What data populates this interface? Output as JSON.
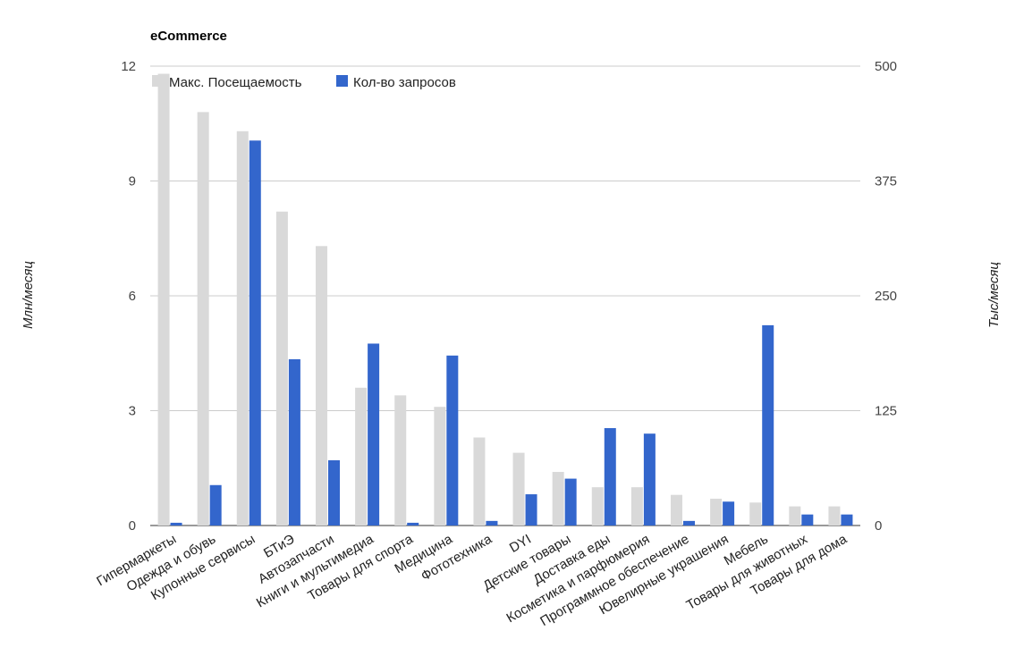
{
  "chart_data": {
    "type": "bar",
    "title": "eCommerce",
    "ylabel_left": "Млн/месяц",
    "ylabel_right": "Тыс/месяц",
    "ylim_left": [
      0,
      12
    ],
    "ylim_right": [
      0,
      500
    ],
    "yticks_left": [
      "0",
      "3",
      "6",
      "9",
      "12"
    ],
    "yticks_right": [
      "0",
      "125",
      "250",
      "375",
      "500"
    ],
    "grid": true,
    "legend_position": "top-left",
    "categories": [
      "Гипермаркеты",
      "Одежда и обувь",
      "Купонные сервисы",
      "БТиЭ",
      "Автозапчасти",
      "Книги и мультимедиа",
      "Товары для спорта",
      "Медицина",
      "Фототехника",
      "DYI",
      "Детские товары",
      "Доставка еды",
      "Косметика и парфюмерия",
      "Программное обеспечение",
      "Ювелирные украшения",
      "Мебель",
      "Товары для животных",
      "Товары для дома"
    ],
    "series": [
      {
        "name": "Макс. Посещаемость",
        "axis": "left",
        "color": "#d9d9d9",
        "values": [
          11.8,
          10.8,
          10.3,
          8.2,
          7.3,
          3.6,
          3.4,
          3.1,
          2.3,
          1.9,
          1.4,
          1.0,
          1.0,
          0.8,
          0.7,
          0.6,
          0.5,
          0.5
        ]
      },
      {
        "name": "Кол-во запросов",
        "axis": "right",
        "color": "#3366cc",
        "values": [
          3,
          44,
          419,
          181,
          71,
          198,
          3,
          185,
          5,
          34,
          51,
          106,
          100,
          5,
          26,
          218,
          12,
          12
        ]
      }
    ]
  }
}
